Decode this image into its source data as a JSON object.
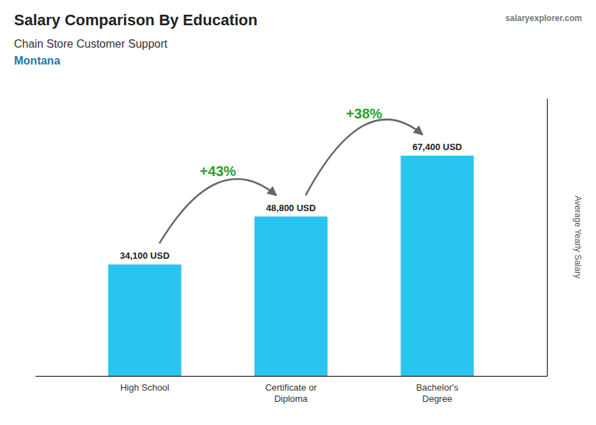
{
  "chart_data": {
    "type": "bar",
    "title": "Salary Comparison By Education",
    "subtitle": [
      "Chain Store Customer Support",
      "Montana"
    ],
    "watermark": "salaryexplorer.com",
    "ylabel": "Average Yearly Salary",
    "categories": [
      "High School",
      "Certificate or\nDiploma",
      "Bachelor's\nDegree"
    ],
    "values": [
      34100,
      48800,
      67400
    ],
    "value_labels": [
      "34,100 USD",
      "48,800 USD",
      "67,400 USD"
    ],
    "data_labels": true,
    "annotations": [
      "+43%",
      "+38%"
    ],
    "color": "#29C5F0",
    "ylim": [
      0,
      85000
    ],
    "grid": false,
    "tick_labels": "x"
  }
}
